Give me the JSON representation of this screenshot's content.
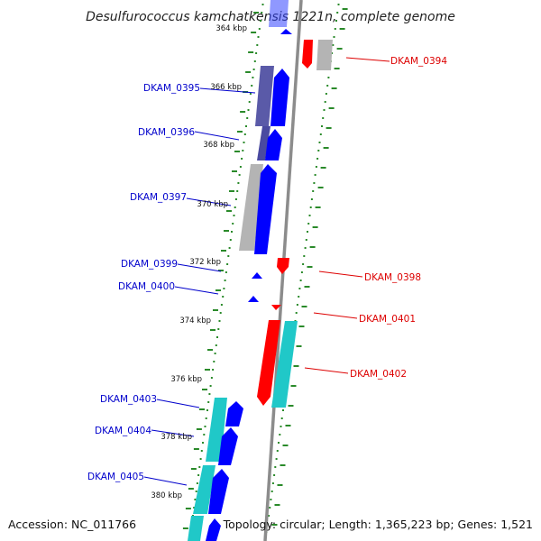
{
  "title": "Desulfurococcus kamchatkensis 1221n, complete genome",
  "accession": "Accession: NC_011766",
  "summary": "Topology: circular; Length: 1,365,223 bp; Genes: 1,521",
  "colors": {
    "forward_label": "#0000cc",
    "reverse_label": "#dd0000",
    "forward_cds": "#0000ff",
    "reverse_cds": "#ff0000",
    "rna": "#20c8c8",
    "gray": "#b4b4b4",
    "backbone": "#8c8c8c",
    "ticks": "#2a8a2a"
  },
  "kbp_labels": [
    {
      "text": "364 kbp"
    },
    {
      "text": "366 kbp"
    },
    {
      "text": "368 kbp"
    },
    {
      "text": "370 kbp"
    },
    {
      "text": "372 kbp"
    },
    {
      "text": "374 kbp"
    },
    {
      "text": "376 kbp"
    },
    {
      "text": "378 kbp"
    },
    {
      "text": "380 kbp"
    }
  ],
  "genes": [
    {
      "label": "DKAM_0394",
      "strand": "reverse"
    },
    {
      "label": "DKAM_0395",
      "strand": "forward"
    },
    {
      "label": "DKAM_0396",
      "strand": "forward"
    },
    {
      "label": "DKAM_0397",
      "strand": "forward"
    },
    {
      "label": "DKAM_0398",
      "strand": "reverse"
    },
    {
      "label": "DKAM_0399",
      "strand": "forward"
    },
    {
      "label": "DKAM_0400",
      "strand": "forward"
    },
    {
      "label": "DKAM_0401",
      "strand": "reverse"
    },
    {
      "label": "DKAM_0402",
      "strand": "reverse"
    },
    {
      "label": "DKAM_0403",
      "strand": "forward"
    },
    {
      "label": "DKAM_0404",
      "strand": "forward"
    },
    {
      "label": "DKAM_0405",
      "strand": "forward"
    }
  ]
}
